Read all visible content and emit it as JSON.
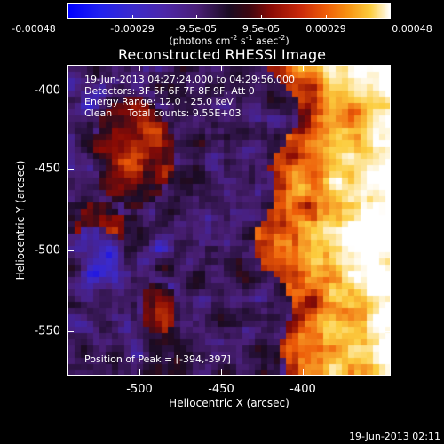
{
  "colorbar": {
    "tick_labels": [
      "-0.00048",
      "-0.00029",
      "-9.5e-05",
      "9.5e-05",
      "0.00029",
      "0.00048"
    ],
    "units_text": "(photons cm",
    "units_sup1": "-2",
    "units_mid1": " s",
    "units_sup2": "-1",
    "units_mid2": " asec",
    "units_sup3": "-2",
    "units_end": ")",
    "range": [
      -0.00048,
      0.00048
    ]
  },
  "title": "Reconstructed RHESSI Image",
  "info": {
    "line1": "19-Jun-2013 04:27:24.000 to 04:29:56.000",
    "line2": "Detectors: 3F 5F 6F 7F 8F 9F, Att 0",
    "line3": "Energy Range: 12.0 - 25.0 keV",
    "line4": "Clean     Total counts: 9.55E+03"
  },
  "peak_text": "Position of Peak = [-394,-397]",
  "axes": {
    "ylabel": "Heliocentric Y (arcsec)",
    "xlabel": "Heliocentric X (arcsec)",
    "yticks": [
      "-400",
      "-450",
      "-500",
      "-550"
    ],
    "xticks": [
      "-500",
      "-450",
      "-400"
    ]
  },
  "timestamp": "19-Jun-2013 02:11",
  "chart_data": {
    "type": "heatmap",
    "title": "Reconstructed RHESSI Image",
    "xlabel": "Heliocentric X (arcsec)",
    "ylabel": "Heliocentric Y (arcsec)",
    "xlim": [
      -544,
      -363
    ],
    "ylim": [
      -575,
      -388
    ],
    "x_ticks": [
      -500,
      -450,
      -400
    ],
    "y_ticks": [
      -400,
      -450,
      -500,
      -550
    ],
    "colorbar_range": [
      -0.00048,
      0.00048
    ],
    "peak_position": [
      -394,
      -397
    ],
    "colormap": [
      "#0000ff",
      "#3b2acc",
      "#4a1f77",
      "#1a0b22",
      "#8a0b05",
      "#ee5c08",
      "#fccd3e",
      "#ffffff"
    ]
  }
}
